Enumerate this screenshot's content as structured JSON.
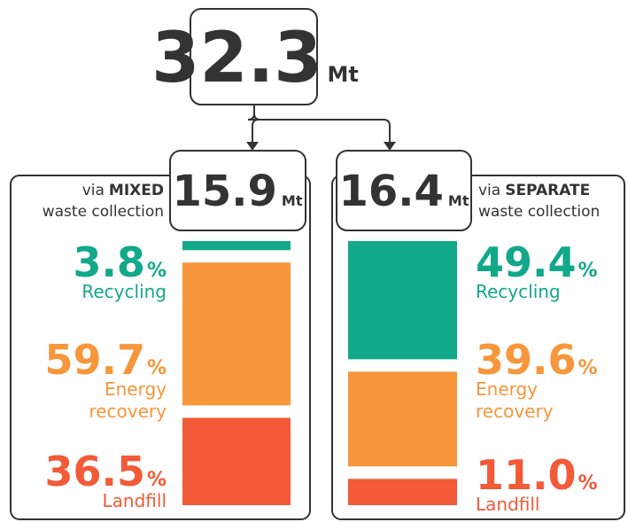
{
  "total": {
    "value": 32.3,
    "unit": "Mt"
  },
  "panels": [
    {
      "value": 15.9,
      "unit": "Mt",
      "caption_prefix": "via",
      "caption_emphasis": "MIXED",
      "caption_line2": "waste collection",
      "segments": [
        {
          "value": 3.8,
          "value_label": "3.8",
          "unit": "%",
          "color": "#12a88a",
          "label_lines": [
            "Recycling"
          ]
        },
        {
          "value": 59.7,
          "value_label": "59.7",
          "unit": "%",
          "color": "#f7963a",
          "label_lines": [
            "Energy",
            "recovery"
          ]
        },
        {
          "value": 36.5,
          "value_label": "36.5",
          "unit": "%",
          "color": "#f25a38",
          "label_lines": [
            "Landfill"
          ]
        }
      ]
    },
    {
      "value": 16.4,
      "unit": "Mt",
      "caption_prefix": "via",
      "caption_emphasis": "SEPARATE",
      "caption_line2": "waste collection",
      "segments": [
        {
          "value": 49.4,
          "value_label": "49.4",
          "unit": "%",
          "color": "#12a88a",
          "label_lines": [
            "Recycling"
          ]
        },
        {
          "value": 39.6,
          "value_label": "39.6",
          "unit": "%",
          "color": "#f7963a",
          "label_lines": [
            "Energy",
            "recovery"
          ]
        },
        {
          "value": 11.0,
          "value_label": "11.0",
          "unit": "%",
          "color": "#f25a38",
          "label_lines": [
            "Landfill"
          ]
        }
      ]
    }
  ]
}
